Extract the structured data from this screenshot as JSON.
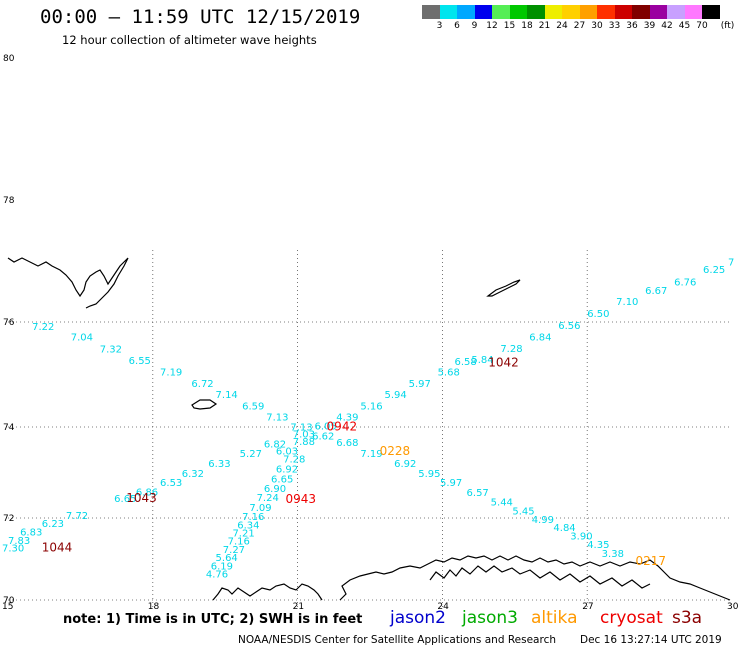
{
  "header": {
    "title": "00:00 – 11:59 UTC 12/15/2019",
    "subtitle": "12 hour collection of altimeter wave heights"
  },
  "colorbar": {
    "unit": "(ft)",
    "colors": [
      "#6e6e6e",
      "#00e5ee",
      "#00a8ff",
      "#0000ee",
      "#55ee55",
      "#00c800",
      "#009000",
      "#eeee00",
      "#ffd000",
      "#ffa000",
      "#ff3000",
      "#cc0000",
      "#800000",
      "#9a00a0",
      "#c8a0ff",
      "#ff78ff",
      "#000000"
    ],
    "ticks": [
      "3",
      "6",
      "9",
      "12",
      "15",
      "18",
      "21",
      "24",
      "27",
      "30",
      "33",
      "36",
      "39",
      "42",
      "45",
      "70"
    ]
  },
  "axes": {
    "y_ticks": [
      {
        "value": 80,
        "label": "80"
      },
      {
        "value": 78,
        "label": "78"
      },
      {
        "value": 76,
        "label": "76"
      },
      {
        "value": 74,
        "label": "74"
      },
      {
        "value": 72,
        "label": "72"
      },
      {
        "value": 70,
        "label": "70"
      }
    ],
    "x_ticks": [
      {
        "value": 15,
        "label": "15"
      },
      {
        "value": 18,
        "label": "18"
      },
      {
        "value": 21,
        "label": "21"
      },
      {
        "value": 24,
        "label": "24"
      },
      {
        "value": 27,
        "label": "27"
      },
      {
        "value": 30,
        "label": "30"
      }
    ],
    "x_range": [
      15,
      30
    ],
    "y_range": [
      70,
      80
    ],
    "gridlines": "dotted"
  },
  "wave_heights": [
    {
      "lon": 30.1,
      "lat": 76.93,
      "value": "7"
    },
    {
      "lon": 29.4,
      "lat": 76.8,
      "value": "6.25"
    },
    {
      "lon": 28.8,
      "lat": 76.6,
      "value": "6.76"
    },
    {
      "lon": 28.2,
      "lat": 76.46,
      "value": "6.67"
    },
    {
      "lon": 27.6,
      "lat": 76.28,
      "value": "7.10"
    },
    {
      "lon": 27.0,
      "lat": 76.08,
      "value": "6.50"
    },
    {
      "lon": 26.4,
      "lat": 75.87,
      "value": "6.56"
    },
    {
      "lon": 25.8,
      "lat": 75.65,
      "value": "6.84"
    },
    {
      "lon": 25.2,
      "lat": 75.43,
      "value": "7.28"
    },
    {
      "lon": 24.6,
      "lat": 75.22,
      "value": "5.84"
    },
    {
      "lon": 24.25,
      "lat": 75.18,
      "value": "6.58"
    },
    {
      "lon": 23.9,
      "lat": 74.98,
      "value": "5.68"
    },
    {
      "lon": 23.3,
      "lat": 74.76,
      "value": "5.97"
    },
    {
      "lon": 22.8,
      "lat": 74.55,
      "value": "5.94"
    },
    {
      "lon": 22.3,
      "lat": 74.33,
      "value": "5.16"
    },
    {
      "lon": 21.8,
      "lat": 74.12,
      "value": "4.39"
    },
    {
      "lon": 21.35,
      "lat": 73.95,
      "value": "6.05"
    },
    {
      "lon": 20.85,
      "lat": 73.92,
      "value": "7.13"
    },
    {
      "lon": 20.9,
      "lat": 73.77,
      "value": "7.03"
    },
    {
      "lon": 21.3,
      "lat": 73.72,
      "value": "6.62"
    },
    {
      "lon": 20.9,
      "lat": 73.6,
      "value": "7.88"
    },
    {
      "lon": 20.3,
      "lat": 73.55,
      "value": "6.82"
    },
    {
      "lon": 21.8,
      "lat": 73.58,
      "value": "6.68"
    },
    {
      "lon": 22.3,
      "lat": 73.34,
      "value": "7.19"
    },
    {
      "lon": 23.0,
      "lat": 73.12,
      "value": "6.92"
    },
    {
      "lon": 23.5,
      "lat": 72.9,
      "value": "5.95"
    },
    {
      "lon": 23.95,
      "lat": 72.7,
      "value": "5.97"
    },
    {
      "lon": 24.5,
      "lat": 72.48,
      "value": "6.57"
    },
    {
      "lon": 25.0,
      "lat": 72.28,
      "value": "5.44"
    },
    {
      "lon": 25.45,
      "lat": 72.08,
      "value": "5.45"
    },
    {
      "lon": 25.85,
      "lat": 71.88,
      "value": "4.99"
    },
    {
      "lon": 26.3,
      "lat": 71.68,
      "value": "4.84"
    },
    {
      "lon": 26.65,
      "lat": 71.47,
      "value": "3.90"
    },
    {
      "lon": 27.0,
      "lat": 71.27,
      "value": "4.35"
    },
    {
      "lon": 27.3,
      "lat": 71.05,
      "value": "3.38"
    },
    {
      "lon": 15.5,
      "lat": 75.85,
      "value": "7.22"
    },
    {
      "lon": 16.3,
      "lat": 75.65,
      "value": "7.04"
    },
    {
      "lon": 16.9,
      "lat": 75.42,
      "value": "7.32"
    },
    {
      "lon": 17.5,
      "lat": 75.2,
      "value": "6.55"
    },
    {
      "lon": 18.15,
      "lat": 74.98,
      "value": "7.19"
    },
    {
      "lon": 18.8,
      "lat": 74.76,
      "value": "6.72"
    },
    {
      "lon": 19.3,
      "lat": 74.55,
      "value": "7.14"
    },
    {
      "lon": 19.85,
      "lat": 74.33,
      "value": "6.59"
    },
    {
      "lon": 20.35,
      "lat": 74.12,
      "value": "7.13"
    },
    {
      "lon": 19.8,
      "lat": 73.34,
      "value": "5.27"
    },
    {
      "lon": 19.15,
      "lat": 73.12,
      "value": "6.33"
    },
    {
      "lon": 18.6,
      "lat": 72.9,
      "value": "6.32"
    },
    {
      "lon": 18.15,
      "lat": 72.7,
      "value": "6.53"
    },
    {
      "lon": 17.65,
      "lat": 72.5,
      "value": "6.86"
    },
    {
      "lon": 17.2,
      "lat": 72.35,
      "value": "6.65"
    },
    {
      "lon": 16.2,
      "lat": 71.98,
      "value": "7.72"
    },
    {
      "lon": 15.7,
      "lat": 71.78,
      "value": "6.23"
    },
    {
      "lon": 15.25,
      "lat": 71.57,
      "value": "6.83"
    },
    {
      "lon": 15.0,
      "lat": 71.37,
      "value": "7.83"
    },
    {
      "lon": 14.8,
      "lat": 71.18,
      "value": "7.30"
    },
    {
      "lon": 20.55,
      "lat": 73.4,
      "value": "6.03"
    },
    {
      "lon": 20.7,
      "lat": 73.22,
      "value": "7.28"
    },
    {
      "lon": 20.55,
      "lat": 73.0,
      "value": "6.92"
    },
    {
      "lon": 20.45,
      "lat": 72.78,
      "value": "6.65"
    },
    {
      "lon": 20.3,
      "lat": 72.57,
      "value": "6.90"
    },
    {
      "lon": 20.15,
      "lat": 72.37,
      "value": "7.24"
    },
    {
      "lon": 20.0,
      "lat": 72.15,
      "value": "7.09"
    },
    {
      "lon": 19.85,
      "lat": 71.95,
      "value": "7.16"
    },
    {
      "lon": 19.75,
      "lat": 71.75,
      "value": "6.34"
    },
    {
      "lon": 19.65,
      "lat": 71.55,
      "value": "7.21"
    },
    {
      "lon": 19.55,
      "lat": 71.35,
      "value": "7.16"
    },
    {
      "lon": 19.45,
      "lat": 71.15,
      "value": "7.27"
    },
    {
      "lon": 19.3,
      "lat": 70.95,
      "value": "5.64"
    },
    {
      "lon": 19.2,
      "lat": 70.75,
      "value": "6.19"
    },
    {
      "lon": 19.1,
      "lat": 70.55,
      "value": "4.76"
    }
  ],
  "pass_labels": [
    {
      "lon": 24.95,
      "lat": 75.15,
      "text": "1042",
      "color": "#8b0000"
    },
    {
      "lon": 21.6,
      "lat": 73.92,
      "text": "0942",
      "color": "#ee0000"
    },
    {
      "lon": 22.7,
      "lat": 73.38,
      "text": "0228",
      "color": "#ff9900"
    },
    {
      "lon": 17.45,
      "lat": 72.35,
      "text": "1043",
      "color": "#8b0000"
    },
    {
      "lon": 20.75,
      "lat": 72.33,
      "text": "0943",
      "color": "#ee0000"
    },
    {
      "lon": 15.7,
      "lat": 71.18,
      "text": "1044",
      "color": "#8b0000"
    },
    {
      "lon": 28.0,
      "lat": 70.85,
      "text": "0217",
      "color": "#ff9900"
    }
  ],
  "footer": {
    "note": "note:  1) Time is in UTC;  2) SWH is in feet",
    "satellites": [
      {
        "name": "jason2",
        "color": "#0000cc"
      },
      {
        "name": "jason3",
        "color": "#00aa00"
      },
      {
        "name": "altika",
        "color": "#ff9900"
      },
      {
        "name": "cryosat",
        "color": "#ee0000"
      },
      {
        "name": "s3a",
        "color": "#8b0000"
      }
    ],
    "credit": "NOAA/NESDIS Center for Satellite Applications and Research",
    "timestamp": "Dec 16 13:27:14 UTC 2019"
  }
}
